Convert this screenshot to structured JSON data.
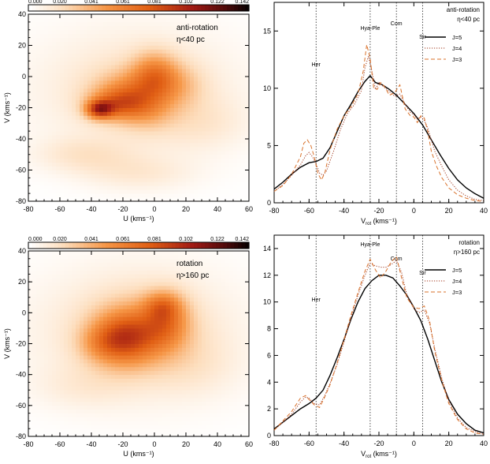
{
  "chart_data": [
    {
      "type": "heatmap",
      "panel": "top-left",
      "colorbar": {
        "ticks": [
          "0.000",
          "0.020",
          "0.041",
          "0.061",
          "0.081",
          "0.102",
          "0.122",
          "0.142"
        ],
        "range": [
          0.0,
          0.142
        ]
      },
      "annotation": [
        "anti-rotation",
        "η<40 pc"
      ],
      "xlabel": "U (kms⁻¹)",
      "ylabel": "V (kms⁻¹)",
      "xlim": [
        -80,
        60
      ],
      "ylim": [
        -80,
        40
      ],
      "xticks": [
        "-80",
        "-60",
        "-40",
        "-20",
        "0",
        "20",
        "40",
        "60"
      ],
      "yticks": [
        "-80",
        "-60",
        "-40",
        "-20",
        "0",
        "20",
        "40"
      ],
      "blobs": [
        {
          "u": -12,
          "v": -8,
          "su": 45,
          "sv": 28,
          "w": 0.018
        },
        {
          "u": 0,
          "v": 2,
          "su": 10,
          "sv": 10,
          "w": 0.04
        },
        {
          "u": -15,
          "v": -10,
          "su": 16,
          "sv": 10,
          "w": 0.035
        },
        {
          "u": -25,
          "v": -18,
          "su": 12,
          "sv": 7,
          "w": 0.04
        },
        {
          "u": -35,
          "v": -21,
          "su": 6,
          "sv": 4,
          "w": 0.065
        },
        {
          "u": -5,
          "v": -22,
          "su": 12,
          "sv": 9,
          "w": 0.022
        },
        {
          "u": -45,
          "v": -50,
          "su": 22,
          "sv": 8,
          "w": 0.014
        },
        {
          "u": -10,
          "v": -62,
          "su": 25,
          "sv": 8,
          "w": 0.012
        },
        {
          "u": 30,
          "v": -30,
          "su": 20,
          "sv": 12,
          "w": 0.01
        },
        {
          "u": 15,
          "v": -5,
          "su": 12,
          "sv": 10,
          "w": 0.02
        }
      ]
    },
    {
      "type": "line",
      "panel": "top-right",
      "title_lines": [
        "anti-rotation",
        "η<40 pc"
      ],
      "xlabel": "V_rot (kms⁻¹)",
      "xlim": [
        -80,
        40
      ],
      "ylim": [
        0,
        17.5
      ],
      "xticks": [
        -80,
        -60,
        -40,
        -20,
        0,
        20,
        40
      ],
      "yticks": [
        0,
        5,
        10,
        15
      ],
      "vlines": [
        {
          "x": -56,
          "label": "Her"
        },
        {
          "x": -25,
          "label": "Hya-Ple"
        },
        {
          "x": -10,
          "label": "Com"
        },
        {
          "x": 5,
          "label": "Sir"
        }
      ],
      "series": [
        {
          "name": "J=5",
          "color": "#000000",
          "dash": "",
          "x": [
            -80,
            -75,
            -70,
            -65,
            -60,
            -56,
            -52,
            -48,
            -44,
            -40,
            -36,
            -32,
            -28,
            -25,
            -22,
            -18,
            -14,
            -10,
            -5,
            0,
            5,
            10,
            15,
            20,
            25,
            30,
            35,
            40
          ],
          "y": [
            1.2,
            1.8,
            2.5,
            3.1,
            3.5,
            3.6,
            3.9,
            4.8,
            6.2,
            7.6,
            8.6,
            9.7,
            10.6,
            11.1,
            10.5,
            10.3,
            9.9,
            9.4,
            8.6,
            7.8,
            6.8,
            5.5,
            4.2,
            3.0,
            2.0,
            1.3,
            0.8,
            0.4
          ]
        },
        {
          "name": "J=4",
          "color": "#a0391e",
          "dash": "1.2 1.8",
          "x": [
            -80,
            -75,
            -70,
            -65,
            -62,
            -60,
            -58,
            -56,
            -54,
            -52,
            -50,
            -46,
            -42,
            -38,
            -34,
            -30,
            -28,
            -26,
            -24,
            -22,
            -20,
            -17,
            -14,
            -11,
            -8,
            -5,
            -2,
            0,
            2,
            4,
            6,
            8,
            12,
            16,
            20,
            25,
            30,
            35,
            40
          ],
          "y": [
            1.0,
            1.6,
            2.4,
            3.3,
            4.1,
            4.4,
            4.0,
            3.4,
            2.6,
            2.4,
            2.8,
            4.5,
            6.4,
            7.8,
            8.6,
            9.8,
            11.8,
            12.8,
            11.5,
            9.9,
            10.5,
            10.1,
            9.7,
            9.3,
            9.5,
            8.6,
            7.9,
            7.7,
            7.3,
            7.5,
            7.2,
            6.5,
            4.5,
            3.2,
            2.0,
            1.1,
            0.6,
            0.3,
            0.2
          ]
        },
        {
          "name": "J=3",
          "color": "#d9712a",
          "dash": "5 3",
          "x": [
            -80,
            -75,
            -70,
            -65,
            -63,
            -61,
            -59,
            -57,
            -55,
            -53,
            -51,
            -48,
            -44,
            -40,
            -36,
            -32,
            -29,
            -27,
            -25,
            -23,
            -21,
            -19,
            -17,
            -14,
            -11,
            -8,
            -5,
            -2,
            0,
            2,
            4,
            6,
            8,
            10,
            13,
            16,
            20,
            25,
            30,
            35,
            40
          ],
          "y": [
            1.0,
            1.5,
            2.5,
            4.0,
            5.2,
            5.5,
            5.0,
            4.0,
            2.6,
            2.0,
            2.6,
            4.6,
            6.4,
            7.6,
            8.4,
            9.5,
            11.5,
            13.8,
            12.6,
            10.0,
            9.9,
            10.5,
            10.2,
            9.4,
            9.6,
            10.3,
            8.2,
            7.6,
            7.5,
            7.0,
            7.6,
            7.4,
            6.2,
            4.5,
            3.2,
            2.2,
            1.3,
            0.7,
            0.4,
            0.2,
            0.1
          ]
        }
      ]
    },
    {
      "type": "heatmap",
      "panel": "bottom-left",
      "colorbar": {
        "ticks": [
          "0.000",
          "0.020",
          "0.041",
          "0.061",
          "0.081",
          "0.102",
          "0.122",
          "0.142"
        ],
        "range": [
          0.0,
          0.142
        ]
      },
      "annotation": [
        "rotation",
        "η>160 pc"
      ],
      "xlabel": "U (kms⁻¹)",
      "ylabel": "V (kms⁻¹)",
      "xlim": [
        -80,
        60
      ],
      "ylim": [
        -80,
        40
      ],
      "xticks": [
        "-80",
        "-60",
        "-40",
        "-20",
        "0",
        "20",
        "40",
        "60"
      ],
      "yticks": [
        "-80",
        "-60",
        "-40",
        "-20",
        "0",
        "20",
        "40"
      ],
      "blobs": [
        {
          "u": -12,
          "v": -12,
          "su": 45,
          "sv": 30,
          "w": 0.02
        },
        {
          "u": -20,
          "v": -17,
          "su": 14,
          "sv": 12,
          "w": 0.05
        },
        {
          "u": -8,
          "v": -12,
          "su": 20,
          "sv": 15,
          "w": 0.03
        },
        {
          "u": 8,
          "v": -4,
          "su": 10,
          "sv": 12,
          "w": 0.035
        },
        {
          "u": 5,
          "v": 5,
          "su": 8,
          "sv": 6,
          "w": 0.025
        },
        {
          "u": -35,
          "v": -20,
          "su": 10,
          "sv": 8,
          "w": 0.015
        },
        {
          "u": -45,
          "v": -48,
          "su": 22,
          "sv": 10,
          "w": 0.008
        },
        {
          "u": 25,
          "v": -35,
          "su": 20,
          "sv": 14,
          "w": 0.008
        }
      ]
    },
    {
      "type": "line",
      "panel": "bottom-right",
      "title_lines": [
        "rotation",
        "η>160 pc"
      ],
      "xlabel": "V_rot (kms⁻¹)",
      "xlim": [
        -80,
        40
      ],
      "ylim": [
        0,
        15
      ],
      "xticks": [
        -80,
        -60,
        -40,
        -20,
        0,
        20,
        40
      ],
      "yticks": [
        0,
        2,
        4,
        6,
        8,
        10,
        12,
        14
      ],
      "vlines": [
        {
          "x": -56,
          "label": "Her"
        },
        {
          "x": -25,
          "label": "Hya-Ple"
        },
        {
          "x": -10,
          "label": "Com"
        },
        {
          "x": 5,
          "label": "Sir"
        }
      ],
      "series": [
        {
          "name": "J=5",
          "color": "#000000",
          "dash": "",
          "x": [
            -80,
            -75,
            -70,
            -65,
            -60,
            -56,
            -52,
            -48,
            -44,
            -40,
            -36,
            -32,
            -28,
            -24,
            -20,
            -16,
            -12,
            -8,
            -4,
            0,
            4,
            8,
            12,
            16,
            20,
            25,
            30,
            35,
            40
          ],
          "y": [
            0.5,
            1.0,
            1.5,
            2.0,
            2.4,
            2.8,
            3.4,
            4.5,
            5.8,
            7.2,
            8.7,
            10.0,
            11.0,
            11.6,
            12.0,
            12.0,
            11.8,
            11.2,
            10.5,
            9.6,
            8.6,
            7.2,
            5.6,
            4.0,
            2.7,
            1.6,
            0.9,
            0.4,
            0.2
          ]
        },
        {
          "name": "J=4",
          "color": "#a0391e",
          "dash": "1.2 1.8",
          "x": [
            -80,
            -75,
            -70,
            -65,
            -62,
            -60,
            -57,
            -54,
            -51,
            -48,
            -44,
            -40,
            -36,
            -32,
            -28,
            -25,
            -22,
            -19,
            -16,
            -13,
            -10,
            -7,
            -4,
            0,
            3,
            6,
            9,
            12,
            16,
            20,
            25,
            30,
            35,
            40
          ],
          "y": [
            0.4,
            1.0,
            1.6,
            2.5,
            2.9,
            2.8,
            2.4,
            2.3,
            3.0,
            3.9,
            5.3,
            7.0,
            8.8,
            10.5,
            12.0,
            12.9,
            12.7,
            12.6,
            12.6,
            12.8,
            13.1,
            12.2,
            10.5,
            9.5,
            9.2,
            9.4,
            8.4,
            6.5,
            4.3,
            2.6,
            1.3,
            0.6,
            0.3,
            0.1
          ]
        },
        {
          "name": "J=3",
          "color": "#d9712a",
          "dash": "5 3",
          "x": [
            -80,
            -75,
            -70,
            -65,
            -62,
            -60,
            -57,
            -54,
            -51,
            -48,
            -44,
            -40,
            -36,
            -32,
            -28,
            -25,
            -22,
            -19,
            -16,
            -13,
            -10,
            -7,
            -4,
            0,
            3,
            6,
            9,
            12,
            16,
            20,
            25,
            30,
            35,
            40
          ],
          "y": [
            0.4,
            1.1,
            1.8,
            2.8,
            3.0,
            2.7,
            2.3,
            2.1,
            2.9,
            3.8,
            5.4,
            7.2,
            9.0,
            10.7,
            12.3,
            13.2,
            12.4,
            11.8,
            12.3,
            13.0,
            13.4,
            11.8,
            10.3,
            9.6,
            9.5,
            9.7,
            8.6,
            6.3,
            4.1,
            2.4,
            1.2,
            0.5,
            0.2,
            0.1
          ]
        }
      ]
    }
  ]
}
